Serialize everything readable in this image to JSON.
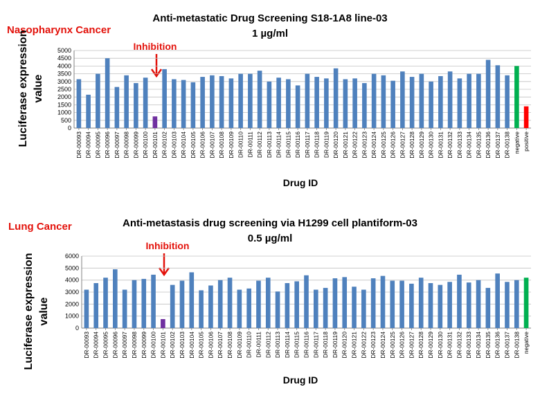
{
  "chart_data": [
    {
      "type": "bar",
      "title": "Anti-metastatic  Drug Screening S18-1A8 line-03",
      "subtitle": "1 µg/ml",
      "cancer_label": "Nasopharynx Cancer",
      "annotation": "Inhibition",
      "annotated_category": "DR-00101",
      "xlabel": "Drug ID",
      "ylabel_line1": "Luciferase expression",
      "ylabel_line2": "value",
      "ylim": [
        0,
        5000
      ],
      "yticks": [
        0,
        500,
        1000,
        1500,
        2000,
        2500,
        3000,
        3500,
        4000,
        4500,
        5000
      ],
      "grid": true,
      "categories": [
        "DR-00093",
        "DR-00094",
        "DR-00095",
        "DR-00096",
        "DR-00097",
        "DR-00098",
        "DR-00099",
        "DR-00100",
        "DR-00101",
        "DR-00102",
        "DR-00103",
        "DR-00104",
        "DR-00105",
        "DR-00106",
        "DR-00107",
        "DR-00108",
        "DR-00109",
        "DR-00110",
        "DR-00111",
        "DR-00112",
        "DR-00113",
        "DR-00114",
        "DR-00115",
        "DR-00116",
        "DR-00117",
        "DR-00118",
        "DR-00119",
        "DR-00120",
        "DR-00121",
        "DR-00122",
        "DR-00123",
        "DR-00124",
        "DR-00125",
        "DR-00126",
        "DR-00127",
        "DR-00128",
        "DR-00129",
        "DR-00130",
        "DR-00131",
        "DR-00132",
        "DR-00133",
        "DR-00134",
        "DR-00135",
        "DR-00136",
        "DR-00137",
        "DR-00138",
        "negative",
        "positive"
      ],
      "values": [
        3150,
        2150,
        3500,
        4500,
        2650,
        3400,
        2900,
        3250,
        750,
        3800,
        3150,
        3100,
        2950,
        3300,
        3400,
        3350,
        3200,
        3500,
        3500,
        3700,
        3000,
        3250,
        3150,
        2750,
        3500,
        3300,
        3200,
        3850,
        3150,
        3200,
        2900,
        3500,
        3400,
        3050,
        3650,
        3300,
        3500,
        3000,
        3350,
        3650,
        3200,
        3500,
        3500,
        4400,
        4050,
        3400,
        4000,
        1400
      ],
      "colors": {
        "default": "#4f81bd",
        "inhibition": "#7030a0",
        "negative": "#00b050",
        "positive": "#ff0000"
      }
    },
    {
      "type": "bar",
      "title": "Anti-metastasis drug screening via H1299 cell plantiform-03",
      "subtitle": "0.5 µg/ml",
      "cancer_label": "Lung Cancer",
      "annotation": "Inhibition",
      "annotated_category": "DR-00101",
      "xlabel": "Drug ID",
      "ylabel_line1": "Luciferase expression",
      "ylabel_line2": "value",
      "ylim": [
        0,
        6000
      ],
      "yticks": [
        0,
        1000,
        2000,
        3000,
        4000,
        5000,
        6000
      ],
      "grid": true,
      "categories": [
        "DR-00093",
        "DR-00094",
        "DR-00095",
        "DR-00096",
        "DR-00097",
        "DR-00098",
        "DR-00099",
        "DR-00100",
        "DR-00101",
        "DR-00102",
        "DR-00103",
        "DR-00104",
        "DR-00105",
        "DR-00106",
        "DR-00107",
        "DR-00108",
        "DR-00109",
        "DR-00110",
        "DR-00111",
        "DR-00112",
        "DR-00113",
        "DR-00114",
        "DR-00115",
        "DR-00116",
        "DR-00117",
        "DR-00118",
        "DR-00119",
        "DR-00120",
        "DR-00121",
        "DR-00122",
        "DR-00123",
        "DR-00124",
        "DR-00125",
        "DR-00126",
        "DR-00127",
        "DR-00128",
        "DR-00129",
        "DR-00130",
        "DR-00131",
        "DR-00132",
        "DR-00133",
        "DR-00134",
        "DR-00135",
        "DR-00136",
        "DR-00137",
        "DR-00138",
        "negative"
      ],
      "values": [
        3200,
        3750,
        4200,
        4900,
        3200,
        4000,
        4100,
        4450,
        750,
        3600,
        3950,
        4650,
        3150,
        3550,
        4000,
        4200,
        3200,
        3300,
        3950,
        4200,
        3050,
        3750,
        3900,
        4400,
        3200,
        3350,
        4150,
        4250,
        3450,
        3200,
        4150,
        4350,
        3950,
        3950,
        3700,
        4200,
        3750,
        3600,
        3850,
        4450,
        3800,
        4000,
        3350,
        4550,
        3850,
        4000,
        4200
      ],
      "colors": {
        "default": "#4f81bd",
        "inhibition": "#7030a0",
        "negative": "#00b050"
      }
    }
  ]
}
